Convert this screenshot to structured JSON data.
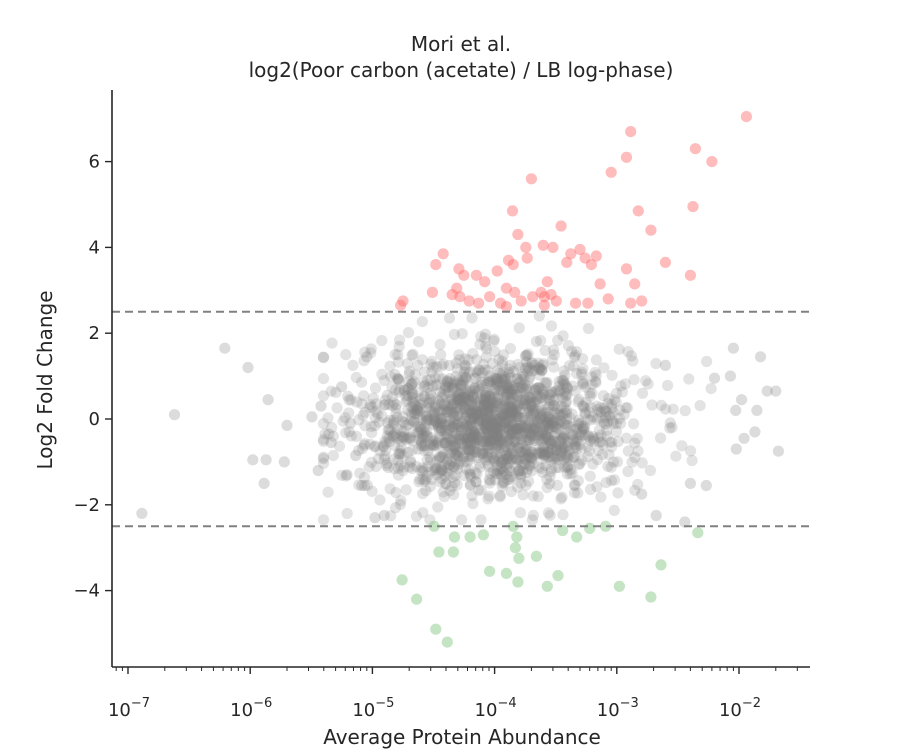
{
  "chart_data": {
    "type": "scatter",
    "title_line1": "Mori et al.",
    "title_line2": "log2(Poor carbon (acetate) / LB log-phase)",
    "xlabel": "Average Protein Abundance",
    "ylabel": "Log2 Fold Change",
    "xscale": "log",
    "xlim": [
      7e-08,
      0.04
    ],
    "ylim": [
      -5.8,
      7.7
    ],
    "x_ticks": [
      {
        "value": 1e-07,
        "base": "10",
        "exp": "−7"
      },
      {
        "value": 1e-06,
        "base": "10",
        "exp": "−6"
      },
      {
        "value": 1e-05,
        "base": "10",
        "exp": "−5"
      },
      {
        "value": 0.0001,
        "base": "10",
        "exp": "−4"
      },
      {
        "value": 0.001,
        "base": "10",
        "exp": "−3"
      },
      {
        "value": 0.01,
        "base": "10",
        "exp": "−2"
      }
    ],
    "y_ticks": [
      {
        "value": -4,
        "label": "−4"
      },
      {
        "value": -2,
        "label": "−2"
      },
      {
        "value": 0,
        "label": "0"
      },
      {
        "value": 2,
        "label": "2"
      },
      {
        "value": 4,
        "label": "4"
      },
      {
        "value": 6,
        "label": "6"
      }
    ],
    "thresholds": [
      2.5,
      -2.5
    ],
    "grid": false,
    "colors": {
      "up": "#ff6b6b",
      "down": "#7cc47c",
      "neutral": "#808080",
      "threshold": "#808080"
    },
    "series": [
      {
        "role": "up",
        "points": [
          [
            0.0115,
            7.05
          ],
          [
            0.0013,
            6.7
          ],
          [
            0.0012,
            6.1
          ],
          [
            0.0044,
            6.3
          ],
          [
            0.006,
            6.0
          ],
          [
            0.0009,
            5.75
          ],
          [
            0.0002,
            5.6
          ],
          [
            0.00014,
            4.85
          ],
          [
            0.0015,
            4.85
          ],
          [
            0.0042,
            4.95
          ],
          [
            0.0019,
            4.4
          ],
          [
            0.00035,
            4.5
          ],
          [
            0.000155,
            4.3
          ],
          [
            0.00018,
            4.0
          ],
          [
            0.00025,
            4.05
          ],
          [
            0.0003,
            4.0
          ],
          [
            0.0005,
            3.95
          ],
          [
            0.00055,
            3.75
          ],
          [
            0.00068,
            3.8
          ],
          [
            0.00042,
            3.85
          ],
          [
            3.8e-05,
            3.85
          ],
          [
            3.3e-05,
            3.6
          ],
          [
            5.1e-05,
            3.5
          ],
          [
            5.6e-05,
            3.35
          ],
          [
            7.1e-05,
            3.35
          ],
          [
            8.3e-05,
            3.2
          ],
          [
            0.000105,
            3.45
          ],
          [
            0.00013,
            3.7
          ],
          [
            0.000142,
            3.6
          ],
          [
            0.000185,
            3.75
          ],
          [
            0.00027,
            3.2
          ],
          [
            0.00039,
            3.65
          ],
          [
            0.00062,
            3.6
          ],
          [
            0.00073,
            3.15
          ],
          [
            0.0012,
            3.5
          ],
          [
            0.0025,
            3.65
          ],
          [
            0.004,
            3.35
          ],
          [
            0.0014,
            3.15
          ],
          [
            0.00085,
            2.8
          ],
          [
            0.0013,
            2.7
          ],
          [
            0.0016,
            2.75
          ],
          [
            3.1e-05,
            2.95
          ],
          [
            4.9e-05,
            3.05
          ],
          [
            5.2e-05,
            2.85
          ],
          [
            4.5e-05,
            2.9
          ],
          [
            6.2e-05,
            2.75
          ],
          [
            7.4e-05,
            2.7
          ],
          [
            9.1e-05,
            2.85
          ],
          [
            0.000112,
            2.7
          ],
          [
            0.000125,
            3.05
          ],
          [
            0.000146,
            2.95
          ],
          [
            0.000165,
            2.75
          ],
          [
            0.000205,
            2.85
          ],
          [
            0.00024,
            2.95
          ],
          [
            0.000255,
            2.85
          ],
          [
            0.00029,
            2.9
          ],
          [
            0.00032,
            2.75
          ],
          [
            0.000255,
            2.65
          ],
          [
            0.000125,
            2.62
          ],
          [
            0.00046,
            2.7
          ],
          [
            0.00058,
            2.7
          ],
          [
            1.7e-05,
            2.65
          ],
          [
            1.78e-05,
            2.75
          ]
        ]
      },
      {
        "role": "down",
        "points": [
          [
            4.1e-05,
            -5.2
          ],
          [
            3.3e-05,
            -4.9
          ],
          [
            2.3e-05,
            -4.2
          ],
          [
            1.75e-05,
            -3.75
          ],
          [
            9.1e-05,
            -3.55
          ],
          [
            0.000125,
            -3.6
          ],
          [
            0.000155,
            -3.8
          ],
          [
            0.00027,
            -3.9
          ],
          [
            0.00033,
            -3.65
          ],
          [
            0.00105,
            -3.9
          ],
          [
            0.0019,
            -4.15
          ],
          [
            0.0023,
            -3.4
          ],
          [
            3.5e-05,
            -3.1
          ],
          [
            4.6e-05,
            -3.1
          ],
          [
            4.7e-05,
            -2.75
          ],
          [
            6.3e-05,
            -2.75
          ],
          [
            8.1e-05,
            -2.7
          ],
          [
            0.000148,
            -3.0
          ],
          [
            0.000158,
            -3.25
          ],
          [
            0.000152,
            -2.75
          ],
          [
            0.00022,
            -3.2
          ],
          [
            0.00036,
            -2.6
          ],
          [
            0.00047,
            -2.75
          ],
          [
            0.0006,
            -2.55
          ],
          [
            0.00081,
            -2.5
          ],
          [
            0.0046,
            -2.65
          ],
          [
            3.2e-05,
            -2.5
          ],
          [
            0.000142,
            -2.5
          ]
        ]
      },
      {
        "role": "neutral-outliers",
        "points": [
          [
            1.3e-07,
            -2.2
          ],
          [
            2.4e-07,
            0.1
          ],
          [
            6.2e-07,
            1.65
          ],
          [
            9.6e-07,
            1.2
          ],
          [
            1.05e-06,
            -0.95
          ],
          [
            1.4e-06,
            0.45
          ],
          [
            1.3e-06,
            -1.5
          ],
          [
            1.9e-06,
            -1.0
          ],
          [
            1.35e-06,
            -0.95
          ],
          [
            2e-06,
            -0.15
          ],
          [
            3.2e-06,
            0.05
          ],
          [
            3.8e-06,
            0.3
          ],
          [
            3.6e-06,
            -1.2
          ],
          [
            4.6e-06,
            -0.55
          ],
          [
            5.6e-06,
            0.75
          ],
          [
            4.4e-06,
            -0.35
          ],
          [
            6.6e-06,
            -0.1
          ],
          [
            7.3e-06,
            -0.85
          ],
          [
            6.2e-06,
            -1.3
          ],
          [
            8.2e-06,
            -1.55
          ],
          [
            9e-06,
            1.45
          ],
          [
            0.0025,
            1.25
          ],
          [
            0.0063,
            0.95
          ],
          [
            0.0085,
            1.0
          ],
          [
            0.0094,
            0.2
          ],
          [
            0.0105,
            0.45
          ],
          [
            0.011,
            -0.45
          ],
          [
            0.0095,
            -0.7
          ],
          [
            0.009,
            1.65
          ],
          [
            0.015,
            1.45
          ],
          [
            0.017,
            0.65
          ],
          [
            0.02,
            0.65
          ],
          [
            0.014,
            0.2
          ],
          [
            0.0135,
            -0.3
          ],
          [
            0.021,
            -0.75
          ],
          [
            0.0036,
            -2.4
          ],
          [
            0.0021,
            -2.25
          ],
          [
            0.004,
            -1.5
          ],
          [
            0.0054,
            -1.55
          ],
          [
            0.0016,
            -1.75
          ],
          [
            1.25e-05,
            -2.25
          ],
          [
            1.05e-05,
            -2.3
          ]
        ]
      }
    ]
  }
}
